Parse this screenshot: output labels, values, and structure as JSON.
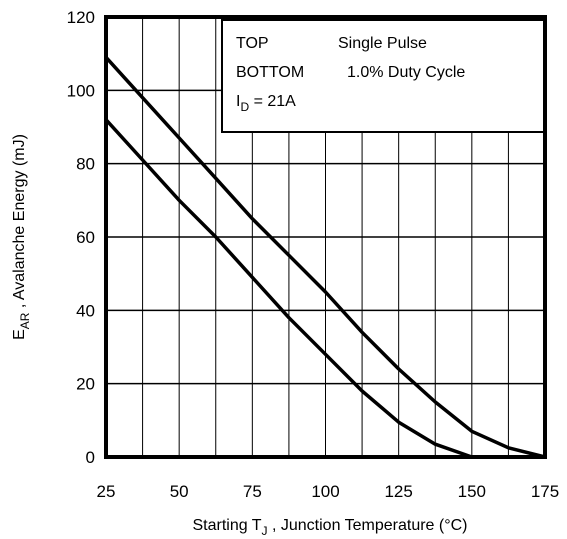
{
  "chart_data": {
    "type": "line",
    "xlabel_prefix": "Starting T",
    "xlabel_sub": "J",
    "xlabel_suffix": " , Junction Temperature (°C)",
    "ylabel_prefix": "E",
    "ylabel_sub": "AR",
    "ylabel_suffix": " , Avalanche Energy (mJ)",
    "xlim": [
      25,
      175
    ],
    "ylim": [
      0,
      120
    ],
    "x_ticks": [
      "25",
      "50",
      "75",
      "100",
      "125",
      "150",
      "175"
    ],
    "y_ticks": [
      "0",
      "20",
      "40",
      "60",
      "80",
      "100",
      "120"
    ],
    "grid": true,
    "legend": {
      "row1_label": "TOP",
      "row1_value": "Single Pulse",
      "row2_label": "BOTTOM",
      "row2_value": "1.0% Duty Cycle",
      "row3_prefix": "I",
      "row3_sub": "D",
      "row3_suffix": " = 21A"
    },
    "series": [
      {
        "x": [
          25,
          37.5,
          50,
          62.5,
          75,
          87.5,
          100,
          112.5,
          125,
          137.5,
          150,
          162.5,
          175
        ],
        "y": [
          109,
          98,
          87,
          76,
          65,
          55,
          45,
          34,
          24,
          15,
          7,
          2.5,
          0
        ]
      },
      {
        "x": [
          25,
          37.5,
          50,
          62.5,
          75,
          87.5,
          100,
          112.5,
          125,
          137.5,
          150,
          162.5,
          175
        ],
        "y": [
          92,
          81,
          70,
          60,
          49,
          38,
          28,
          18,
          9.5,
          3.5,
          0,
          0,
          0
        ]
      }
    ],
    "line_color": "#000000"
  }
}
